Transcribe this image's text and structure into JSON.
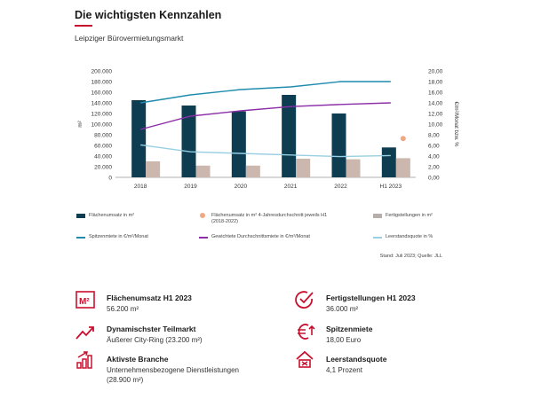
{
  "header": {
    "title": "Die wichtigsten Kennzahlen",
    "subtitle": "Leipziger Bürovermietungsmarkt"
  },
  "colors": {
    "accent": "#c8102e",
    "bar_flaechenumsatz": "#0e3d52",
    "bar_fertigstellungen": "#cbb7ad",
    "line_spitzenmiete": "#1f8cae",
    "line_durchschnitt": "#8c2ea8",
    "line_leerstand": "#98cfe2",
    "dot_4y_avg": "#f0a882"
  },
  "chart_data": {
    "type": "bar",
    "categories": [
      "2018",
      "2019",
      "2020",
      "2021",
      "2022",
      "H1 2023"
    ],
    "ylabel": "m²",
    "y2label": "€/m²/Monat bzw. %",
    "ylim": [
      0,
      200000
    ],
    "y2lim": [
      0,
      20
    ],
    "yticks": [
      "0",
      "20.000",
      "40.000",
      "60.000",
      "80.000",
      "100.000",
      "120.000",
      "140.000",
      "160.000",
      "180.000",
      "200.000"
    ],
    "y2ticks": [
      "0,00",
      "2,00",
      "4,00",
      "6,00",
      "8,00",
      "10,00",
      "12,00",
      "14,00",
      "16,00",
      "18,00",
      "20,00"
    ],
    "series": [
      {
        "name": "Flächenumsatz in m²",
        "kind": "bar",
        "axis": "left",
        "values": [
          145000,
          135000,
          124000,
          155000,
          120000,
          56200
        ]
      },
      {
        "name": "Fertigstellungen in m²",
        "kind": "bar",
        "axis": "left",
        "values": [
          30000,
          22000,
          22000,
          35000,
          34000,
          36000
        ]
      },
      {
        "name": "Flächenumsatz in m² 4-Jahresdurchschnitt jeweils H1 (2018-2022)",
        "kind": "point",
        "axis": "left",
        "values": [
          null,
          null,
          null,
          null,
          null,
          73000
        ]
      },
      {
        "name": "Spitzenmiete in €/m²/Monat",
        "kind": "line",
        "axis": "right",
        "values": [
          14.0,
          15.5,
          16.5,
          17.0,
          18.0,
          18.0
        ]
      },
      {
        "name": "Gewichtete Durchschnittsmiete in €/m²/Monat",
        "kind": "line",
        "axis": "right",
        "values": [
          9.0,
          11.5,
          12.5,
          13.3,
          13.7,
          14.0
        ]
      },
      {
        "name": "Leerstandsquote in %",
        "kind": "line",
        "axis": "right",
        "values": [
          6.1,
          4.8,
          4.5,
          4.2,
          3.9,
          4.1
        ]
      }
    ],
    "legend": [
      {
        "label": "Flächenumsatz in m²",
        "kind": "box",
        "color": "#0e3d52"
      },
      {
        "label": "Flächenumsatz in m² 4-Jahresdurchschnitt jeweils H1 (2018-2022)",
        "kind": "dot",
        "color": "#f0a882"
      },
      {
        "label": "Fertigstellungen in m²",
        "kind": "box",
        "color": "#b5aeab"
      },
      {
        "label": "Spitzenmiete in €/m²/Monat",
        "kind": "line",
        "color": "#1f8cae"
      },
      {
        "label": "Gewichtete Durchschnittsmiete in €/m²/Monat",
        "kind": "line",
        "color": "#8c2ea8"
      },
      {
        "label": "Leerstandsquote in %",
        "kind": "line",
        "color": "#98cfe2"
      }
    ],
    "grid": false,
    "legend_position": "bottom"
  },
  "source": "Stand: Juli 2023; Quelle: JLL",
  "kpis": [
    {
      "icon": "m2-icon",
      "title": "Flächenumsatz H1 2023",
      "value": "56.200  m²"
    },
    {
      "icon": "checkmark-circle-icon",
      "title": "Fertigstellungen H1 2023",
      "value": "36.000  m²"
    },
    {
      "icon": "trend-up-icon",
      "title": "Dynamischster Teilmarkt",
      "value": "Äußerer City-Ring (23.200  m²)"
    },
    {
      "icon": "euro-arrow-icon",
      "title": "Spitzenmiete",
      "value": "18,00 Euro"
    },
    {
      "icon": "bar-growth-icon",
      "title": "Aktivste Branche",
      "value": "Unternehmensbezogene Dienstleistungen  (28.900  m²)"
    },
    {
      "icon": "vacancy-house-icon",
      "title": "Leerstandsquote",
      "value": "4,1 Prozent"
    }
  ]
}
